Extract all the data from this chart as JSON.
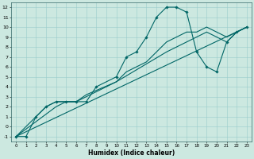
{
  "xlabel": "Humidex (Indice chaleur)",
  "xlim": [
    -0.5,
    23.5
  ],
  "ylim": [
    -1.5,
    12.5
  ],
  "xticks": [
    0,
    1,
    2,
    3,
    4,
    5,
    6,
    7,
    8,
    9,
    10,
    11,
    12,
    13,
    14,
    15,
    16,
    17,
    18,
    19,
    20,
    21,
    22,
    23
  ],
  "yticks": [
    -1,
    0,
    1,
    2,
    3,
    4,
    5,
    6,
    7,
    8,
    9,
    10,
    11,
    12
  ],
  "bg_color": "#cce8e0",
  "grid_color": "#99cccc",
  "line_color": "#006666",
  "curve1_x": [
    0,
    1,
    2,
    3,
    4,
    5,
    6,
    7,
    8,
    10,
    11,
    12,
    13,
    14,
    15,
    16,
    17,
    18,
    19,
    20,
    21,
    22,
    23
  ],
  "curve1_y": [
    -1,
    -1,
    1,
    2,
    2.5,
    2.5,
    2.5,
    2.5,
    4,
    5,
    7,
    7.5,
    9,
    11,
    12,
    12,
    11.5,
    7.5,
    6,
    5.5,
    8.5,
    9.5,
    10
  ],
  "curve2_x": [
    0,
    2,
    3,
    4,
    5,
    6,
    7,
    10,
    11,
    12,
    13,
    14,
    15,
    16,
    17,
    18,
    19,
    20,
    21,
    22,
    23
  ],
  "curve2_y": [
    -1,
    1,
    2,
    2.5,
    2.5,
    2.5,
    3.0,
    4.5,
    5.5,
    6.0,
    6.5,
    7.5,
    8.5,
    9.0,
    9.5,
    9.5,
    10.0,
    9.5,
    9.0,
    9.5,
    10
  ],
  "line1_x": [
    0,
    23
  ],
  "line1_y": [
    -1,
    10
  ],
  "line2_x": [
    0,
    4,
    5,
    6,
    7,
    10,
    15,
    19,
    20,
    21,
    22,
    23
  ],
  "line2_y": [
    -1,
    2.0,
    2.5,
    2.5,
    3.2,
    4.5,
    7.5,
    9.5,
    9.0,
    8.5,
    9.5,
    10
  ]
}
